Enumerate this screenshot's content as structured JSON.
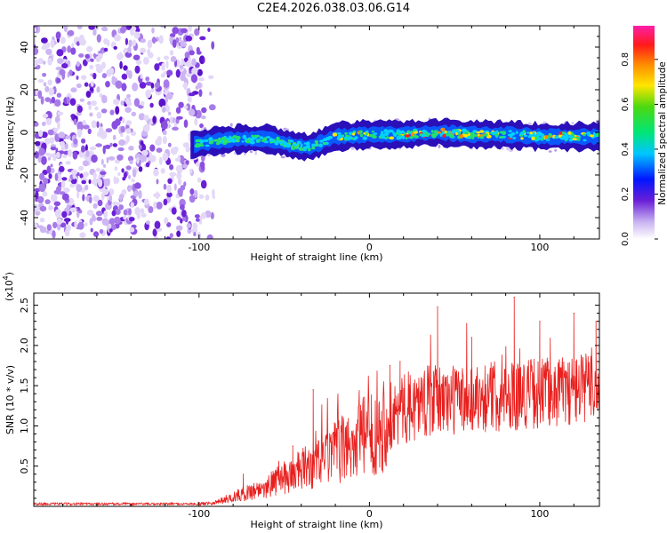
{
  "title": "C2E4.2026.038.03.06.G14",
  "chart_data": [
    {
      "type": "heatmap",
      "xlabel": "Height of straight line (km)",
      "ylabel": "Frequency (Hz)",
      "xlim": [
        -197,
        135
      ],
      "ylim": [
        -50,
        50
      ],
      "xticks": [
        -100,
        0,
        100
      ],
      "yticks": [
        -40,
        -20,
        0,
        20,
        40
      ],
      "noise_region_end_km": -97,
      "signal_band": [
        {
          "x": -105,
          "freq": -6
        },
        {
          "x": -90,
          "freq": -4
        },
        {
          "x": -75,
          "freq": -3
        },
        {
          "x": -60,
          "freq": -3
        },
        {
          "x": -45,
          "freq": -6
        },
        {
          "x": -35,
          "freq": -7
        },
        {
          "x": -20,
          "freq": -2
        },
        {
          "x": 0,
          "freq": -1
        },
        {
          "x": 20,
          "freq": -1
        },
        {
          "x": 40,
          "freq": 0
        },
        {
          "x": 60,
          "freq": -1
        },
        {
          "x": 80,
          "freq": -1
        },
        {
          "x": 100,
          "freq": -2
        },
        {
          "x": 120,
          "freq": -2
        },
        {
          "x": 135,
          "freq": -2
        }
      ],
      "colorbar": {
        "label": "Normalized spectral amplitude",
        "range": [
          0,
          0.95
        ],
        "ticks": [
          "0.0",
          "0.2",
          "0.4",
          "0.6",
          "0.8"
        ]
      }
    },
    {
      "type": "line",
      "xlabel": "Height of straight line (km)",
      "ylabel": "SNR (10 * v/v)",
      "scale_label": "(x10",
      "scale_exp": "4",
      "scale_close": ")",
      "xlim": [
        -197,
        135
      ],
      "ylim": [
        0,
        2.65
      ],
      "xticks": [
        -100,
        0,
        100
      ],
      "yticks": [
        "0.5",
        "1.0",
        "1.5",
        "2.0",
        "2.5"
      ],
      "series": [
        {
          "name": "SNR",
          "color": "#e8201e",
          "trend": [
            {
              "x": -197,
              "y": 0.03
            },
            {
              "x": -100,
              "y": 0.03
            },
            {
              "x": -90,
              "y": 0.05
            },
            {
              "x": -75,
              "y": 0.15
            },
            {
              "x": -60,
              "y": 0.25
            },
            {
              "x": -45,
              "y": 0.4
            },
            {
              "x": -30,
              "y": 0.55
            },
            {
              "x": -15,
              "y": 0.72
            },
            {
              "x": 0,
              "y": 0.9
            },
            {
              "x": 15,
              "y": 1.15
            },
            {
              "x": 30,
              "y": 1.3
            },
            {
              "x": 60,
              "y": 1.35
            },
            {
              "x": 90,
              "y": 1.4
            },
            {
              "x": 120,
              "y": 1.45
            },
            {
              "x": 135,
              "y": 1.5
            }
          ],
          "peaks": [
            {
              "x": -87,
              "y": 0.1
            },
            {
              "x": -74,
              "y": 0.4
            },
            {
              "x": -55,
              "y": 0.45
            },
            {
              "x": -45,
              "y": 0.75
            },
            {
              "x": -33,
              "y": 1.45
            },
            {
              "x": -22,
              "y": 0.8
            },
            {
              "x": 12,
              "y": 1.75
            },
            {
              "x": 18,
              "y": 1.8
            },
            {
              "x": 40,
              "y": 2.48
            },
            {
              "x": 60,
              "y": 2.1
            },
            {
              "x": 85,
              "y": 2.6
            },
            {
              "x": 100,
              "y": 2.3
            },
            {
              "x": 120,
              "y": 2.4
            },
            {
              "x": 133,
              "y": 2.3
            }
          ]
        }
      ]
    }
  ]
}
